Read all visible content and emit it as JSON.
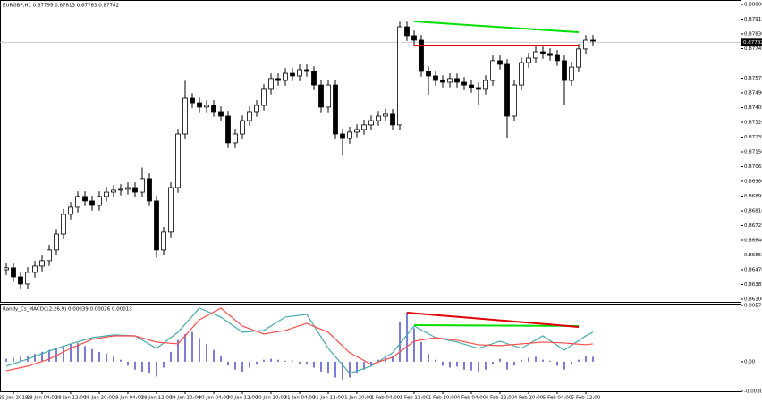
{
  "chart_data": [
    {
      "type": "candlestick",
      "title": "EURGBP,H1  0.87795 0.87813 0.87763 0.87782",
      "up_color": "#ffffff",
      "down_color": "#000000",
      "ylim": [
        0.863,
        0.88
      ],
      "yticks": [
        {
          "value": 0.88,
          "label": "0.88000"
        },
        0.87915,
        {
          "value": 0.8783,
          "label": "0.87830"
        },
        0.87745,
        0.87575,
        {
          "value": 0.8749,
          "label": "0.87490"
        },
        0.87405,
        {
          "value": 0.8732,
          "label": "0.87320"
        },
        0.87235,
        {
          "value": 0.8715,
          "label": "0.87150"
        },
        0.87065,
        {
          "value": 0.8698,
          "label": "0.86980"
        },
        0.86895,
        {
          "value": 0.8681,
          "label": "0.86810"
        },
        0.86725,
        {
          "value": 0.8664,
          "label": "0.86640"
        },
        0.86555,
        {
          "value": 0.8647,
          "label": "0.86470"
        },
        0.86385,
        {
          "value": 0.863,
          "label": "0.86300"
        }
      ],
      "current_price": 0.87782,
      "xticks": [
        {
          "value": 1,
          "label": "25 Jan 2019"
        },
        {
          "value": 5,
          "label": "28 Jan 04:00"
        },
        {
          "value": 9,
          "label": "28 Jan 12:00"
        },
        {
          "value": 13,
          "label": "28 Jan 20:00"
        },
        {
          "value": 17,
          "label": "29 Jan 04:00"
        },
        {
          "value": 21,
          "label": "29 Jan 12:00"
        },
        {
          "value": 25,
          "label": "29 Jan 20:00"
        },
        {
          "value": 29,
          "label": "30 Jan 04:00"
        },
        {
          "value": 33,
          "label": "30 Jan 12:00"
        },
        {
          "value": 37,
          "label": "30 Jan 20:00"
        },
        {
          "value": 41,
          "label": "31 Jan 04:00"
        },
        {
          "value": 45,
          "label": "31 Jan 12:00"
        },
        {
          "value": 49,
          "label": "31 Jan 20:00"
        },
        {
          "value": 53,
          "label": "1 Feb 04:00"
        },
        {
          "value": 57,
          "label": "1 Feb 12:00"
        },
        {
          "value": 61,
          "label": "1 Feb 20:00"
        },
        {
          "value": 65,
          "label": "4 Feb 04:00"
        },
        {
          "value": 69,
          "label": "4 Feb 12:00"
        },
        {
          "value": 73,
          "label": "4 Feb 20:00"
        },
        {
          "value": 77,
          "label": "5 Feb 04:00"
        },
        {
          "value": 81,
          "label": "5 Feb 12:00"
        }
      ],
      "open": [
        0.8647,
        0.86481,
        0.86429,
        0.86388,
        0.86455,
        0.86491,
        0.86522,
        0.86584,
        0.86676,
        0.8679,
        0.86831,
        0.86893,
        0.86867,
        0.86841,
        0.86893,
        0.86918,
        0.86929,
        0.86934,
        0.86944,
        0.86918,
        0.86996,
        0.86867,
        0.86584,
        0.86687,
        0.86944,
        0.87253,
        0.87459,
        0.87433,
        0.87408,
        0.87418,
        0.87382,
        0.87356,
        0.87202,
        0.87253,
        0.8733,
        0.87382,
        0.87418,
        0.87511,
        0.87573,
        0.87562,
        0.87603,
        0.87588,
        0.87624,
        0.87614,
        0.87536,
        0.87408,
        0.87536,
        0.87253,
        0.87227,
        0.87264,
        0.87279,
        0.87305,
        0.8733,
        0.87356,
        0.87367,
        0.87305,
        0.87871,
        0.8782,
        0.87794,
        0.87614,
        0.87588,
        0.87562,
        0.87552,
        0.87573,
        0.87552,
        0.87536,
        0.87521,
        0.87511,
        0.87562,
        0.87676,
        0.87655,
        0.87356,
        0.87536,
        0.87665,
        0.87691,
        0.87727,
        0.87717,
        0.87706,
        0.87676,
        0.87562,
        0.87639,
        0.87743,
        0.87794
      ],
      "high": [
        0.86511,
        0.86511,
        0.86459,
        0.86485,
        0.86521,
        0.86552,
        0.86614,
        0.86706,
        0.8682,
        0.86861,
        0.86923,
        0.86923,
        0.86897,
        0.86923,
        0.86948,
        0.86959,
        0.86964,
        0.86974,
        0.86974,
        0.8706,
        0.87026,
        0.86897,
        0.86717,
        0.86974,
        0.87283,
        0.8756,
        0.87489,
        0.87463,
        0.87448,
        0.87448,
        0.87412,
        0.87386,
        0.87283,
        0.8736,
        0.87412,
        0.87448,
        0.87541,
        0.87603,
        0.87603,
        0.87633,
        0.87633,
        0.87654,
        0.87654,
        0.87644,
        0.87566,
        0.87566,
        0.87566,
        0.87283,
        0.87294,
        0.87309,
        0.87335,
        0.8736,
        0.87386,
        0.87397,
        0.87397,
        0.879,
        0.87901,
        0.8785,
        0.87824,
        0.87644,
        0.87618,
        0.87592,
        0.87603,
        0.87603,
        0.87582,
        0.87566,
        0.87551,
        0.87592,
        0.87706,
        0.87706,
        0.87685,
        0.87566,
        0.87695,
        0.87721,
        0.87757,
        0.87757,
        0.87747,
        0.87736,
        0.87706,
        0.87669,
        0.87773,
        0.87824,
        0.87824
      ],
      "low": [
        0.8644,
        0.86399,
        0.86358,
        0.86358,
        0.86425,
        0.86461,
        0.86492,
        0.86554,
        0.86646,
        0.8676,
        0.86801,
        0.86837,
        0.86811,
        0.86811,
        0.86863,
        0.86888,
        0.86899,
        0.86904,
        0.86888,
        0.86888,
        0.86837,
        0.8654,
        0.86554,
        0.86657,
        0.86914,
        0.87223,
        0.87403,
        0.87378,
        0.87378,
        0.87352,
        0.87326,
        0.87172,
        0.87172,
        0.87223,
        0.873,
        0.87352,
        0.87388,
        0.87481,
        0.87532,
        0.87532,
        0.87558,
        0.87558,
        0.87584,
        0.87506,
        0.87378,
        0.87378,
        0.87223,
        0.8713,
        0.87197,
        0.87234,
        0.87249,
        0.87275,
        0.873,
        0.87326,
        0.87275,
        0.87275,
        0.8779,
        0.87764,
        0.87584,
        0.8748,
        0.87532,
        0.87522,
        0.87522,
        0.87522,
        0.87506,
        0.87491,
        0.8742,
        0.87481,
        0.87532,
        0.87625,
        0.8723,
        0.87326,
        0.87506,
        0.87635,
        0.87661,
        0.87687,
        0.87676,
        0.87646,
        0.8742,
        0.87532,
        0.87609,
        0.87713,
        0.87759
      ],
      "close": [
        0.86481,
        0.86429,
        0.86388,
        0.86455,
        0.86491,
        0.86522,
        0.86584,
        0.86676,
        0.8679,
        0.86831,
        0.86893,
        0.86867,
        0.86841,
        0.86893,
        0.86918,
        0.86929,
        0.86934,
        0.86944,
        0.86918,
        0.86996,
        0.86867,
        0.86584,
        0.86687,
        0.86944,
        0.87253,
        0.87459,
        0.87433,
        0.87408,
        0.87418,
        0.87382,
        0.87356,
        0.87202,
        0.87253,
        0.8733,
        0.87382,
        0.87418,
        0.87511,
        0.87573,
        0.87562,
        0.87603,
        0.87588,
        0.87624,
        0.87614,
        0.87536,
        0.87408,
        0.87536,
        0.87253,
        0.87227,
        0.87264,
        0.87279,
        0.87305,
        0.8733,
        0.87356,
        0.87367,
        0.87305,
        0.87871,
        0.8782,
        0.87794,
        0.87614,
        0.87588,
        0.87562,
        0.87552,
        0.87573,
        0.87552,
        0.87536,
        0.87521,
        0.87511,
        0.87562,
        0.87676,
        0.87655,
        0.87356,
        0.87536,
        0.87665,
        0.87691,
        0.87727,
        0.87717,
        0.87706,
        0.87676,
        0.87562,
        0.87639,
        0.87743,
        0.87794,
        0.87789
      ],
      "trendlines": [
        {
          "color": "#00e000",
          "x": [
            57,
            80
          ],
          "y": [
            0.87902,
            0.8784
          ]
        },
        {
          "color": "#e00000",
          "x": [
            57,
            80
          ],
          "y": [
            0.87763,
            0.87763
          ]
        }
      ]
    },
    {
      "type": "macd",
      "title": "Randy_Cs_MACD(12,26,9) 0.00039 0.00026 0.00013",
      "ylim": [
        -0.003,
        0.0057
      ],
      "yticks": [
        0.0057,
        {
          "value": 0,
          "label": "0.00"
        },
        {
          "value": -0.003,
          "label": "-0.0030"
        }
      ],
      "x": [
        0,
        3,
        6,
        9,
        12,
        15,
        18,
        21,
        24,
        27,
        30,
        33,
        36,
        39,
        42,
        45,
        48,
        51,
        54,
        57,
        60,
        63,
        66,
        69,
        72,
        75,
        78,
        81,
        82
      ],
      "series": [
        {
          "color": "#45aaaa",
          "values": [
            -0.00045,
            0.00027,
            0.00109,
            0.00181,
            0.00244,
            0.00272,
            0.00262,
            0.00136,
            0.00299,
            0.00543,
            0.00453,
            0.00299,
            0.00317,
            0.00453,
            0.0048,
            0.00136,
            -0.00118,
            -0.00045,
            0.00091,
            0.00362,
            0.00244,
            0.00199,
            0.00136,
            0.00208,
            0.00136,
            0.00262,
            0.00118,
            0.00262,
            0.00299
          ]
        },
        {
          "color": "#ff4a4a",
          "values": [
            -0.00091,
            -0.00045,
            0.00027,
            0.00136,
            0.00226,
            0.00262,
            0.00262,
            0.00199,
            0.00181,
            0.00425,
            0.00543,
            0.00362,
            0.00281,
            0.00317,
            0.00389,
            0.00299,
            0.00091,
            -0.00027,
            0.00045,
            0.00208,
            0.00244,
            0.00217,
            0.00172,
            0.00163,
            0.00181,
            0.00199,
            0.0019,
            0.00172,
            0.00181
          ]
        }
      ],
      "histogram": {
        "color": "#5a5ad2",
        "values": [
          0.0003,
          0.0004,
          0.0005,
          0.0006,
          0.0008,
          0.001,
          0.0012,
          0.0014,
          0.0016,
          0.0018,
          0.0019,
          0.0016,
          0.0013,
          0.001,
          0.0008,
          0.0005,
          0.0002,
          -0.0004,
          -0.0008,
          -0.001,
          -0.0012,
          -0.0015,
          -0.0006,
          0.001,
          0.0022,
          0.0028,
          0.003,
          0.0024,
          0.0018,
          0.0012,
          0.0006,
          -0.0004,
          -0.0008,
          -0.001,
          -0.0006,
          -0.0003,
          0.0002,
          0.0003,
          0.0002,
          0.0001,
          0.0001,
          -0.0002,
          -0.0003,
          -0.0006,
          -0.001,
          -0.0012,
          -0.0016,
          -0.0018,
          -0.0016,
          -0.0012,
          -0.0008,
          -0.0004,
          0.0002,
          0.0004,
          0.0006,
          0.004,
          0.005,
          0.0034,
          0.002,
          0.0008,
          0.0002,
          -0.0004,
          -0.0006,
          -0.0005,
          -0.0008,
          -0.0009,
          -0.001,
          -0.0008,
          -0.0002,
          0.0003,
          -0.0008,
          -0.0004,
          0.0002,
          0.0004,
          0.0005,
          0.0002,
          0.0001,
          -0.0004,
          -0.0008,
          -0.0003,
          0.0002,
          0.0006,
          0.0005
        ]
      },
      "trendlines": [
        {
          "color": "#00e000",
          "x": [
            57,
            80
          ],
          "y": [
            0.00371,
            0.00362
          ]
        },
        {
          "color": "#e00000",
          "x": [
            56,
            80
          ],
          "y": [
            0.00498,
            0.00353
          ]
        }
      ]
    }
  ]
}
